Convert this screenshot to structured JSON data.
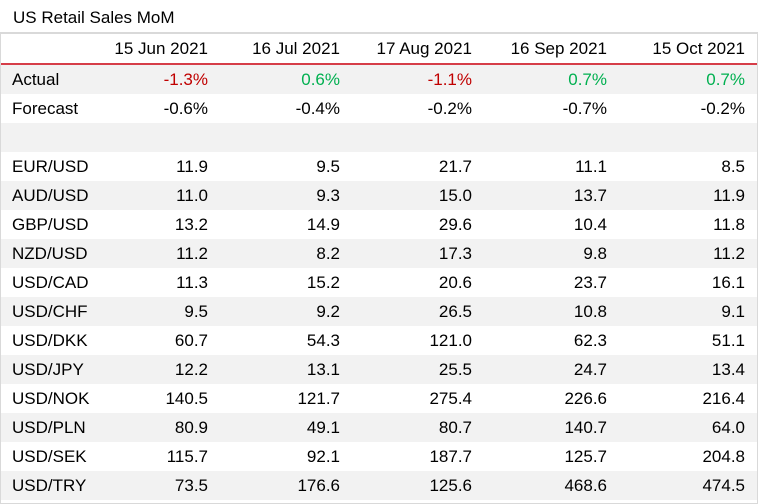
{
  "title": "US Retail Sales MoM",
  "columns": [
    "15 Jun 2021",
    "16 Jul 2021",
    "17 Aug 2021",
    "16 Sep 2021",
    "15 Oct 2021"
  ],
  "colors": {
    "negative": "#c00000",
    "positive": "#00b050",
    "header_rule": "#d63d48",
    "zebra": "#f2f2f2"
  },
  "actual": {
    "label": "Actual",
    "values": [
      "-1.3%",
      "0.6%",
      "-1.1%",
      "0.7%",
      "0.7%"
    ],
    "signs": [
      "neg",
      "pos",
      "neg",
      "pos",
      "pos"
    ]
  },
  "forecast": {
    "label": "Forecast",
    "values": [
      "-0.6%",
      "-0.4%",
      "-0.2%",
      "-0.7%",
      "-0.2%"
    ]
  },
  "pairs": [
    {
      "label": "EUR/USD",
      "values": [
        "11.9",
        "9.5",
        "21.7",
        "11.1",
        "8.5"
      ]
    },
    {
      "label": "AUD/USD",
      "values": [
        "11.0",
        "9.3",
        "15.0",
        "13.7",
        "11.9"
      ]
    },
    {
      "label": "GBP/USD",
      "values": [
        "13.2",
        "14.9",
        "29.6",
        "10.4",
        "11.8"
      ]
    },
    {
      "label": "NZD/USD",
      "values": [
        "11.2",
        "8.2",
        "17.3",
        "9.8",
        "11.2"
      ]
    },
    {
      "label": "USD/CAD",
      "values": [
        "11.3",
        "15.2",
        "20.6",
        "23.7",
        "16.1"
      ]
    },
    {
      "label": "USD/CHF",
      "values": [
        "9.5",
        "9.2",
        "26.5",
        "10.8",
        "9.1"
      ]
    },
    {
      "label": "USD/DKK",
      "values": [
        "60.7",
        "54.3",
        "121.0",
        "62.3",
        "51.1"
      ]
    },
    {
      "label": "USD/JPY",
      "values": [
        "12.2",
        "13.1",
        "25.5",
        "24.7",
        "13.4"
      ]
    },
    {
      "label": "USD/NOK",
      "values": [
        "140.5",
        "121.7",
        "275.4",
        "226.6",
        "216.4"
      ]
    },
    {
      "label": "USD/PLN",
      "values": [
        "80.9",
        "49.1",
        "80.7",
        "140.7",
        "64.0"
      ]
    },
    {
      "label": "USD/SEK",
      "values": [
        "115.7",
        "92.1",
        "187.7",
        "125.7",
        "204.8"
      ]
    },
    {
      "label": "USD/TRY",
      "values": [
        "73.5",
        "176.6",
        "125.6",
        "468.6",
        "474.5"
      ]
    }
  ]
}
